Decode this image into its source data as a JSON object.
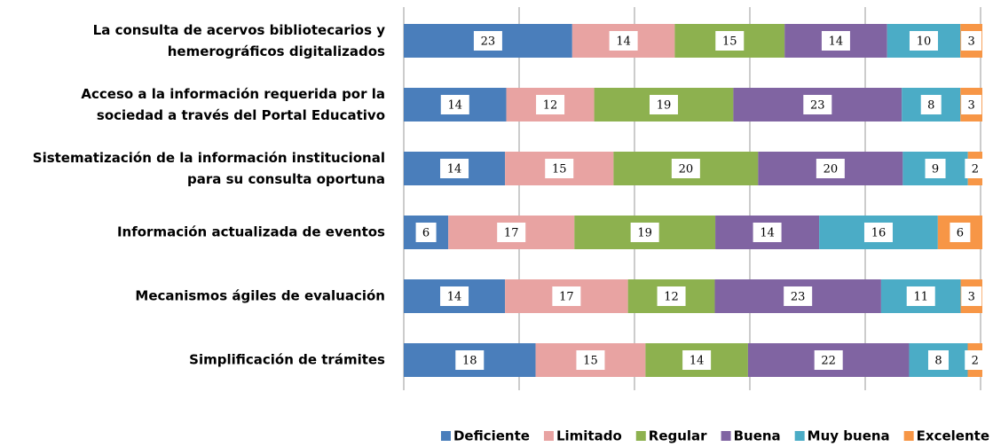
{
  "chart_data": {
    "type": "bar",
    "orientation": "horizontal",
    "stack": "percent",
    "categories": [
      "La consulta de acervos bibliotecarios y\nhemerográficos digitalizados",
      "Acceso a la información requerida por la\nsociedad a través del Portal Educativo",
      "Sistematización de la información  institucional\npara su consulta oportuna",
      "Información actualizada de eventos",
      "Mecanismos ágiles de evaluación",
      "Simplificación de trámites"
    ],
    "series": [
      {
        "name": "Deficiente",
        "color": "#4a7ebb",
        "values": [
          23,
          14,
          14,
          6,
          14,
          18
        ]
      },
      {
        "name": "Limitado",
        "color": "#e8a3a2",
        "values": [
          14,
          12,
          15,
          17,
          17,
          15
        ]
      },
      {
        "name": "Regular",
        "color": "#8db14f",
        "values": [
          15,
          19,
          20,
          19,
          12,
          14
        ]
      },
      {
        "name": "Buena",
        "color": "#8064a2",
        "values": [
          14,
          23,
          20,
          14,
          23,
          22
        ]
      },
      {
        "name": "Muy buena",
        "color": "#4bacc6",
        "values": [
          10,
          8,
          9,
          16,
          11,
          8
        ]
      },
      {
        "name": "Excelente",
        "color": "#f79646",
        "values": [
          3,
          3,
          2,
          6,
          3,
          2
        ]
      }
    ],
    "legend": "bottom-right"
  }
}
